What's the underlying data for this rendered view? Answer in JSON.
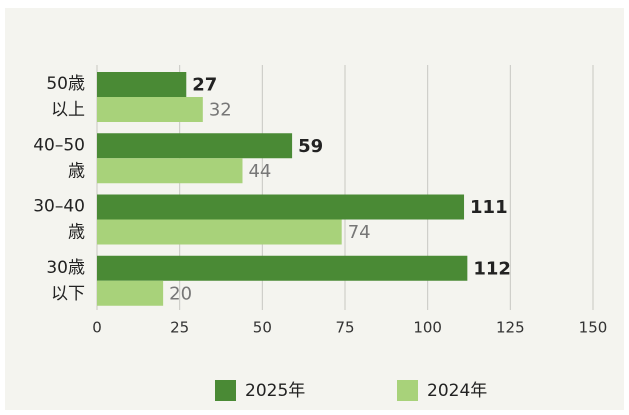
{
  "chart_data": {
    "type": "barh",
    "categories": [
      [
        "50歳",
        "以上"
      ],
      [
        "40–50",
        "歳"
      ],
      [
        "30–40",
        "歳"
      ],
      [
        "30歳",
        "以下"
      ]
    ],
    "series": [
      {
        "name": "2025年",
        "color": "#4a8a35",
        "values": [
          27,
          59,
          111,
          112
        ]
      },
      {
        "name": "2024年",
        "color": "#a8d27a",
        "values": [
          32,
          44,
          74,
          20
        ]
      }
    ],
    "xlim": [
      0,
      150
    ],
    "xticks": [
      0,
      25,
      50,
      75,
      100,
      125,
      150
    ],
    "grid": true,
    "legend": "bottom"
  }
}
